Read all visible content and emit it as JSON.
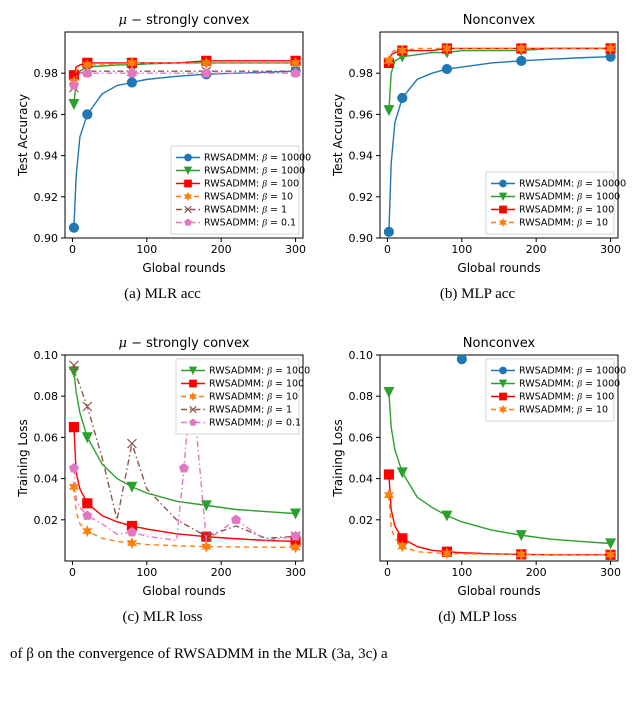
{
  "panels": {
    "a": {
      "caption": "(a) MLR acc",
      "title_math": "μ −",
      "title_rest": " strongly convex",
      "xlabel": "Global rounds",
      "ylabel": "Test Accuracy"
    },
    "b": {
      "caption": "(b) MLP acc",
      "title_plain": "Nonconvex",
      "xlabel": "Global rounds",
      "ylabel": "Test Accuracy"
    },
    "c": {
      "caption": "(c) MLR loss",
      "title_math": "μ −",
      "title_rest": " strongly convex",
      "xlabel": "Global rounds",
      "ylabel": "Training Loss"
    },
    "d": {
      "caption": "(d) MLP loss",
      "title_plain": "Nonconvex",
      "xlabel": "Global rounds",
      "ylabel": "Training Loss"
    }
  },
  "bottom_caption": "of β on the convergence of RWSADMM in the MLR (3a, 3c) a",
  "colors": {
    "b10000": "#1f77b4",
    "b1000": "#2ca02c",
    "b100": "#ff0000",
    "b10": "#ff7f0e",
    "b1": "#8c564b",
    "b0_1": "#e377c2",
    "axis": "#000000",
    "bg": "#ffffff",
    "legend_border": "#cccccc"
  },
  "markers": {
    "b10000": "circle",
    "b1000": "tri_down",
    "b100": "square",
    "b10": "star6",
    "b1": "x",
    "b0_1": "pentagon"
  },
  "linestyles": {
    "b10000": "solid",
    "b1000": "solid",
    "b100": "solid",
    "b10": "dash",
    "b1": "dashdot",
    "b0_1": "dashdot"
  },
  "line_width": 1.4,
  "marker_size": 4.5,
  "axes_acc": {
    "xlim": [
      -10,
      310
    ],
    "ylim": [
      0.9,
      1.0
    ],
    "xticks": [
      0,
      100,
      200,
      300
    ],
    "yticks": [
      0.9,
      0.92,
      0.94,
      0.96,
      0.98
    ],
    "ytick_labels": [
      "0.90",
      "0.92",
      "0.94",
      "0.96",
      "0.98"
    ]
  },
  "axes_loss": {
    "xlim": [
      -10,
      310
    ],
    "ylim": [
      0.0,
      0.1
    ],
    "xticks": [
      0,
      100,
      200,
      300
    ],
    "yticks": [
      0.02,
      0.04,
      0.06,
      0.08,
      0.1
    ],
    "ytick_labels": [
      "0.02",
      "0.04",
      "0.06",
      "0.08",
      "0.10"
    ]
  },
  "legend_labels": {
    "b10000": "RWSADMM: β = 10000",
    "b1000": "RWSADMM: β = 1000",
    "b100": "RWSADMM: β = 100",
    "b10": "RWSADMM: β = 10",
    "b1": "RWSADMM: β = 1",
    "b0_1": "RWSADMM: β = 0.1"
  },
  "legend_label_math": {
    "prefix": "RWSADMM: ",
    "beta_eq": "β = "
  },
  "legend_pos": {
    "a": "lower_right",
    "b": "lower_right",
    "c": "upper_right",
    "d": "upper_right"
  },
  "series": {
    "acc_a": {
      "x": [
        2,
        5,
        10,
        20,
        40,
        60,
        80,
        100,
        140,
        180,
        220,
        260,
        300
      ],
      "b10000": [
        0.905,
        0.93,
        0.949,
        0.96,
        0.97,
        0.974,
        0.9755,
        0.977,
        0.9785,
        0.9795,
        0.98,
        0.9805,
        0.981
      ],
      "b1000": [
        0.965,
        0.976,
        0.981,
        0.983,
        0.9835,
        0.984,
        0.984,
        0.9845,
        0.985,
        0.985,
        0.985,
        0.985,
        0.985
      ],
      "b100": [
        0.979,
        0.983,
        0.984,
        0.985,
        0.985,
        0.985,
        0.985,
        0.985,
        0.985,
        0.986,
        0.986,
        0.986,
        0.986
      ],
      "b10": [
        0.976,
        0.981,
        0.983,
        0.984,
        0.984,
        0.9845,
        0.985,
        0.985,
        0.985,
        0.985,
        0.985,
        0.985,
        0.985
      ],
      "b1": [
        0.973,
        0.978,
        0.98,
        0.981,
        0.981,
        0.981,
        0.981,
        0.981,
        0.981,
        0.981,
        0.981,
        0.981,
        0.981
      ],
      "b0_1": [
        0.974,
        0.978,
        0.98,
        0.98,
        0.98,
        0.98,
        0.98,
        0.98,
        0.98,
        0.98,
        0.98,
        0.98,
        0.98
      ]
    },
    "acc_b": {
      "x": [
        2,
        5,
        10,
        20,
        40,
        60,
        80,
        100,
        140,
        180,
        220,
        260,
        300
      ],
      "b10000": [
        0.903,
        0.936,
        0.956,
        0.968,
        0.977,
        0.98,
        0.982,
        0.983,
        0.985,
        0.986,
        0.9868,
        0.9875,
        0.988
      ],
      "b1000": [
        0.962,
        0.98,
        0.986,
        0.988,
        0.989,
        0.99,
        0.99,
        0.991,
        0.991,
        0.991,
        0.992,
        0.992,
        0.992
      ],
      "b100": [
        0.985,
        0.989,
        0.99,
        0.991,
        0.991,
        0.991,
        0.992,
        0.992,
        0.992,
        0.992,
        0.992,
        0.992,
        0.992
      ],
      "b10": [
        0.986,
        0.99,
        0.991,
        0.991,
        0.992,
        0.992,
        0.992,
        0.992,
        0.992,
        0.992,
        0.992,
        0.992,
        0.992
      ]
    },
    "loss_c": {
      "x": [
        2,
        5,
        10,
        20,
        40,
        60,
        80,
        100,
        140,
        180,
        220,
        260,
        300
      ],
      "b1000": [
        0.092,
        0.082,
        0.072,
        0.06,
        0.047,
        0.04,
        0.036,
        0.033,
        0.029,
        0.027,
        0.025,
        0.024,
        0.023
      ],
      "b100": [
        0.065,
        0.043,
        0.035,
        0.028,
        0.022,
        0.019,
        0.017,
        0.0155,
        0.0132,
        0.0118,
        0.0108,
        0.01,
        0.0095
      ],
      "b10": [
        0.036,
        0.024,
        0.018,
        0.0145,
        0.011,
        0.0095,
        0.0087,
        0.008,
        0.0074,
        0.007,
        0.0068,
        0.0067,
        0.0066
      ],
      "b1": [
        0.095,
        0.09,
        0.085,
        0.075,
        0.05,
        0.02,
        0.057,
        0.035,
        0.02,
        0.012,
        0.017,
        0.011,
        0.012
      ],
      "b0_1_x": [
        2,
        5,
        10,
        20,
        40,
        60,
        80,
        100,
        140,
        150,
        160,
        180,
        220,
        260,
        300
      ],
      "b0_1": [
        0.045,
        0.03,
        0.026,
        0.022,
        0.018,
        0.013,
        0.014,
        0.012,
        0.01,
        0.045,
        0.09,
        0.01,
        0.02,
        0.01,
        0.012
      ]
    },
    "loss_d": {
      "x": [
        2,
        5,
        10,
        20,
        40,
        60,
        80,
        100,
        140,
        180,
        220,
        260,
        300
      ],
      "b1000": [
        0.082,
        0.065,
        0.054,
        0.043,
        0.031,
        0.026,
        0.022,
        0.019,
        0.015,
        0.0125,
        0.0106,
        0.0095,
        0.0085
      ],
      "b100": [
        0.042,
        0.025,
        0.017,
        0.011,
        0.007,
        0.0052,
        0.0045,
        0.004,
        0.0035,
        0.0032,
        0.003,
        0.003,
        0.003
      ],
      "b10": [
        0.032,
        0.016,
        0.011,
        0.007,
        0.0045,
        0.004,
        0.0037,
        0.0035,
        0.0033,
        0.0032,
        0.0031,
        0.0031,
        0.0031
      ],
      "b10000_x": [
        100
      ],
      "b10000": [
        0.098
      ]
    }
  }
}
